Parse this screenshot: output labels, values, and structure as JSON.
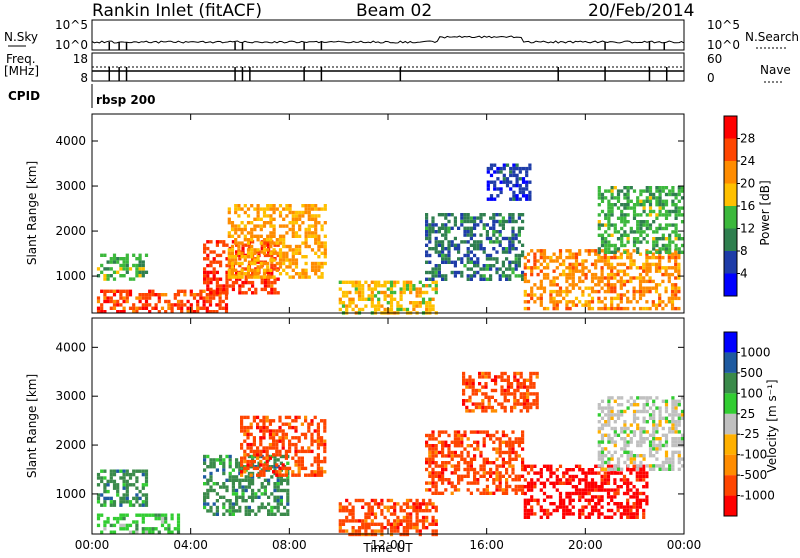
{
  "header": {
    "station_title": "Rankin Inlet (fitACF)",
    "beam_title": "Beam 02",
    "date_title": "20/Feb/2014"
  },
  "noise_panel": {
    "left_label": "N.Sky",
    "right_label": "N.Search",
    "left_ticks": [
      "10^5",
      "10^0"
    ],
    "right_ticks": [
      "10^5",
      "10^0"
    ]
  },
  "freq_panel": {
    "left_label_line1": "Freq.",
    "left_label_line2": "[MHz]",
    "left_ticks": [
      "18",
      "8"
    ],
    "right_label": "Nave",
    "right_ticks": [
      "60",
      "0"
    ]
  },
  "cpid": {
    "label": "CPID",
    "program": "rbsp 200"
  },
  "colors": {
    "power_scale": [
      "#0000ff",
      "#1e3ca8",
      "#2f7f4f",
      "#3cb83c",
      "#ffc000",
      "#ff8c00",
      "#ff4500",
      "#ff0000"
    ],
    "velocity_scale": [
      "#ff0000",
      "#ff4500",
      "#ff8c00",
      "#ffb000",
      "#c0c0c0",
      "#32cd32",
      "#3a8a4a",
      "#1e5aa0",
      "#0000ff"
    ]
  },
  "chart_data": [
    {
      "type": "heatmap",
      "title": "",
      "xlabel": "",
      "ylabel": "Slant Range [km]",
      "x_range": [
        "00:00",
        "24:00"
      ],
      "x_ticks": [
        "00:00",
        "04:00",
        "08:00",
        "12:00",
        "16:00",
        "20:00",
        "00:00"
      ],
      "ylim": [
        180,
        4600
      ],
      "y_ticks": [
        1000,
        2000,
        3000,
        4000
      ],
      "colorbar": {
        "label": "Power [dB]",
        "range": [
          0,
          32
        ],
        "ticks": [
          4,
          8,
          12,
          16,
          20,
          24,
          28
        ]
      },
      "regions": [
        {
          "t_start": 0.2,
          "t_end": 2.2,
          "r_start": 900,
          "r_end": 1500,
          "value": 14
        },
        {
          "t_start": 0.2,
          "t_end": 5.5,
          "r_start": 200,
          "r_end": 700,
          "value": 26
        },
        {
          "t_start": 4.5,
          "t_end": 7.5,
          "r_start": 600,
          "r_end": 1800,
          "value": 27
        },
        {
          "t_start": 5.5,
          "t_end": 9.5,
          "r_start": 1000,
          "r_end": 2600,
          "value": 20
        },
        {
          "t_start": 10.0,
          "t_end": 14.0,
          "r_start": 200,
          "r_end": 900,
          "value": 18
        },
        {
          "t_start": 13.5,
          "t_end": 17.5,
          "r_start": 900,
          "r_end": 2400,
          "value": 9
        },
        {
          "t_start": 16.0,
          "t_end": 17.8,
          "r_start": 2700,
          "r_end": 3500,
          "value": 5
        },
        {
          "t_start": 17.5,
          "t_end": 23.8,
          "r_start": 300,
          "r_end": 1600,
          "value": 22
        },
        {
          "t_start": 20.5,
          "t_end": 23.9,
          "r_start": 1500,
          "r_end": 3000,
          "value": 13
        }
      ]
    },
    {
      "type": "heatmap",
      "title": "",
      "xlabel": "Time UT",
      "ylabel": "Slant Range [km]",
      "x_range": [
        "00:00",
        "24:00"
      ],
      "x_ticks": [
        "00:00",
        "04:00",
        "08:00",
        "12:00",
        "16:00",
        "20:00",
        "00:00"
      ],
      "ylim": [
        180,
        4600
      ],
      "y_ticks": [
        1000,
        2000,
        3000,
        4000
      ],
      "colorbar": {
        "label": "Velocity [m s⁻¹]",
        "tick_labels": [
          "1000",
          "500",
          "100",
          "25",
          "-25",
          "-100",
          "-500",
          "-1000"
        ]
      },
      "regions": [
        {
          "t_start": 0.2,
          "t_end": 2.2,
          "r_start": 800,
          "r_end": 1500,
          "value": 200
        },
        {
          "t_start": 0.2,
          "t_end": 3.5,
          "r_start": 200,
          "r_end": 600,
          "value": 40
        },
        {
          "t_start": 4.5,
          "t_end": 8.0,
          "r_start": 600,
          "r_end": 1800,
          "value": 150
        },
        {
          "t_start": 6.0,
          "t_end": 9.5,
          "r_start": 1400,
          "r_end": 2600,
          "value": -150
        },
        {
          "t_start": 10.0,
          "t_end": 14.0,
          "r_start": 200,
          "r_end": 900,
          "value": -120
        },
        {
          "t_start": 13.5,
          "t_end": 17.5,
          "r_start": 1000,
          "r_end": 2300,
          "value": -400
        },
        {
          "t_start": 15.0,
          "t_end": 18.0,
          "r_start": 2700,
          "r_end": 3500,
          "value": -150
        },
        {
          "t_start": 17.5,
          "t_end": 22.5,
          "r_start": 500,
          "r_end": 1600,
          "value": -700
        },
        {
          "t_start": 20.5,
          "t_end": 23.9,
          "r_start": 1500,
          "r_end": 3000,
          "value": 10
        }
      ]
    }
  ]
}
